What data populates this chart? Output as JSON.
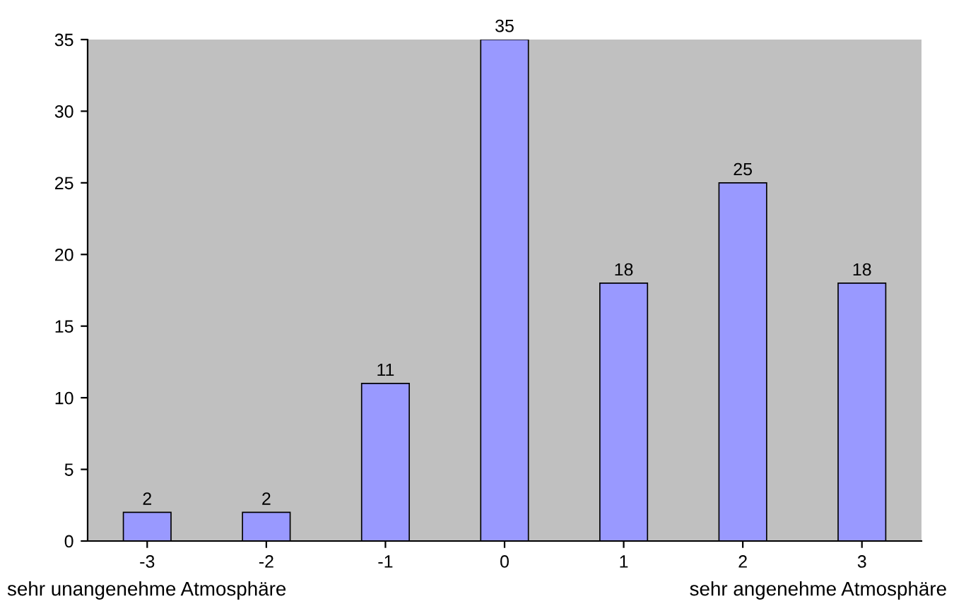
{
  "chart_data": {
    "type": "bar",
    "categories": [
      "-3",
      "-2",
      "-1",
      "0",
      "1",
      "2",
      "3"
    ],
    "values": [
      2,
      2,
      11,
      35,
      18,
      25,
      18
    ],
    "color": "#9999ff",
    "ylim": [
      0,
      35
    ],
    "yticks": [
      0,
      5,
      10,
      15,
      20,
      25,
      30,
      35
    ],
    "data_labels": true,
    "grid": false,
    "annotations": [
      "sehr unangenehme Atmosphäre",
      "sehr angenehme Atmosphäre"
    ]
  }
}
